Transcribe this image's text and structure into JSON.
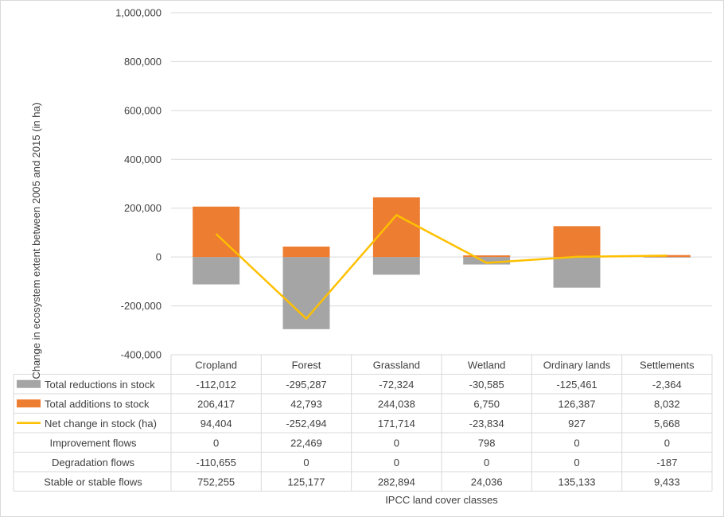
{
  "chart_data": {
    "type": "bar",
    "title": "",
    "xlabel": "IPCC land cover classes",
    "ylabel": "Change in ecosystem extent between 2005 and 2015 (in ha)",
    "ylim": [
      -400000,
      1000000
    ],
    "yticks": [
      -400000,
      -200000,
      0,
      200000,
      400000,
      600000,
      800000,
      1000000
    ],
    "ytick_labels": [
      "-400,000",
      "-200,000",
      "0",
      "200,000",
      "400,000",
      "600,000",
      "800,000",
      "1,000,000"
    ],
    "grid": true,
    "categories": [
      "Cropland",
      "Forest",
      "Grassland",
      "Wetland",
      "Ordinary lands",
      "Settlements"
    ],
    "series": [
      {
        "name": "Total reductions in stock",
        "kind": "bar",
        "color": "#a5a5a5",
        "values": [
          -112012,
          -295287,
          -72324,
          -30585,
          -125461,
          -2364
        ],
        "labels": [
          "-112,012",
          "-295,287",
          "-72,324",
          "-30,585",
          "-125,461",
          "-2,364"
        ]
      },
      {
        "name": "Total additions to stock",
        "kind": "bar",
        "color": "#ed7d31",
        "values": [
          206417,
          42793,
          244038,
          6750,
          126387,
          8032
        ],
        "labels": [
          "206,417",
          "42,793",
          "244,038",
          "6,750",
          "126,387",
          "8,032"
        ]
      },
      {
        "name": "Net change in stock (ha)",
        "kind": "line",
        "color": "#ffc000",
        "values": [
          94404,
          -252494,
          171714,
          -23834,
          927,
          5668
        ],
        "labels": [
          "94,404",
          "-252,494",
          "171,714",
          "-23,834",
          "927",
          "5,668"
        ]
      },
      {
        "name": "Improvement flows",
        "kind": "table",
        "values": [
          0,
          22469,
          0,
          798,
          0,
          0
        ],
        "labels": [
          "0",
          "22,469",
          "0",
          "798",
          "0",
          "0"
        ]
      },
      {
        "name": "Degradation flows",
        "kind": "table",
        "values": [
          -110655,
          0,
          0,
          0,
          0,
          -187
        ],
        "labels": [
          "-110,655",
          "0",
          "0",
          "0",
          "0",
          "-187"
        ]
      },
      {
        "name": "Stable or stable flows",
        "kind": "table",
        "values": [
          752255,
          125177,
          282894,
          24036,
          135133,
          9433
        ],
        "labels": [
          "752,255",
          "125,177",
          "282,894",
          "24,036",
          "135,133",
          "9,433"
        ]
      }
    ],
    "colors": {
      "grid": "#d9d9d9",
      "text": "#404040",
      "border": "#d9d9d9"
    }
  }
}
